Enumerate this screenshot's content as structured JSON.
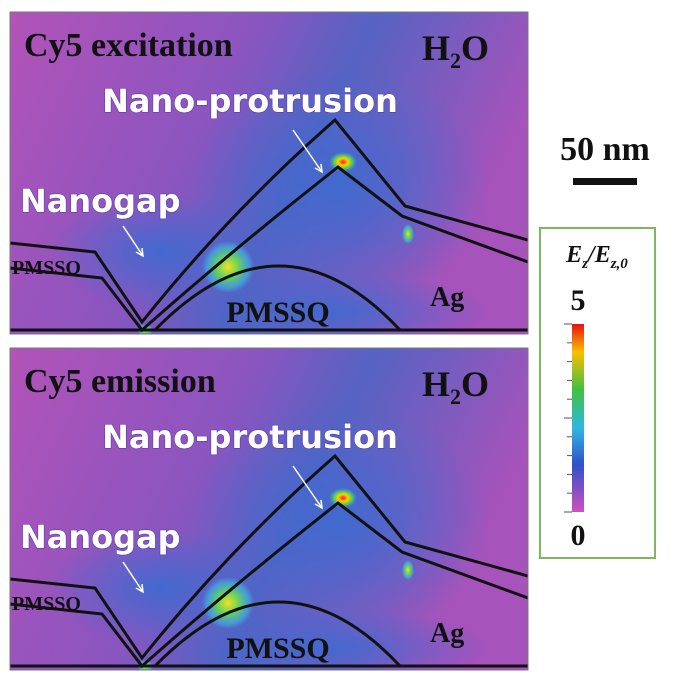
{
  "panels": [
    {
      "title": "Cy5 excitation",
      "medium": [
        "H",
        "2",
        "O"
      ],
      "labels": {
        "protrusion": "Nano-protrusion",
        "gap": "Nanogap",
        "layer": "PMSSQ",
        "dome": "PMSSQ",
        "metal": "Ag"
      }
    },
    {
      "title": "Cy5 emission",
      "medium": [
        "H",
        "2",
        "O"
      ],
      "labels": {
        "protrusion": "Nano-protrusion",
        "gap": "Nanogap",
        "layer": "PMSSQ",
        "dome": "PMSSQ",
        "metal": "Ag"
      }
    }
  ],
  "scale_bar": "50 nm",
  "colorbar": {
    "title": [
      "E",
      "z",
      "/E",
      "z,0"
    ],
    "max": "5",
    "min": "0"
  }
}
